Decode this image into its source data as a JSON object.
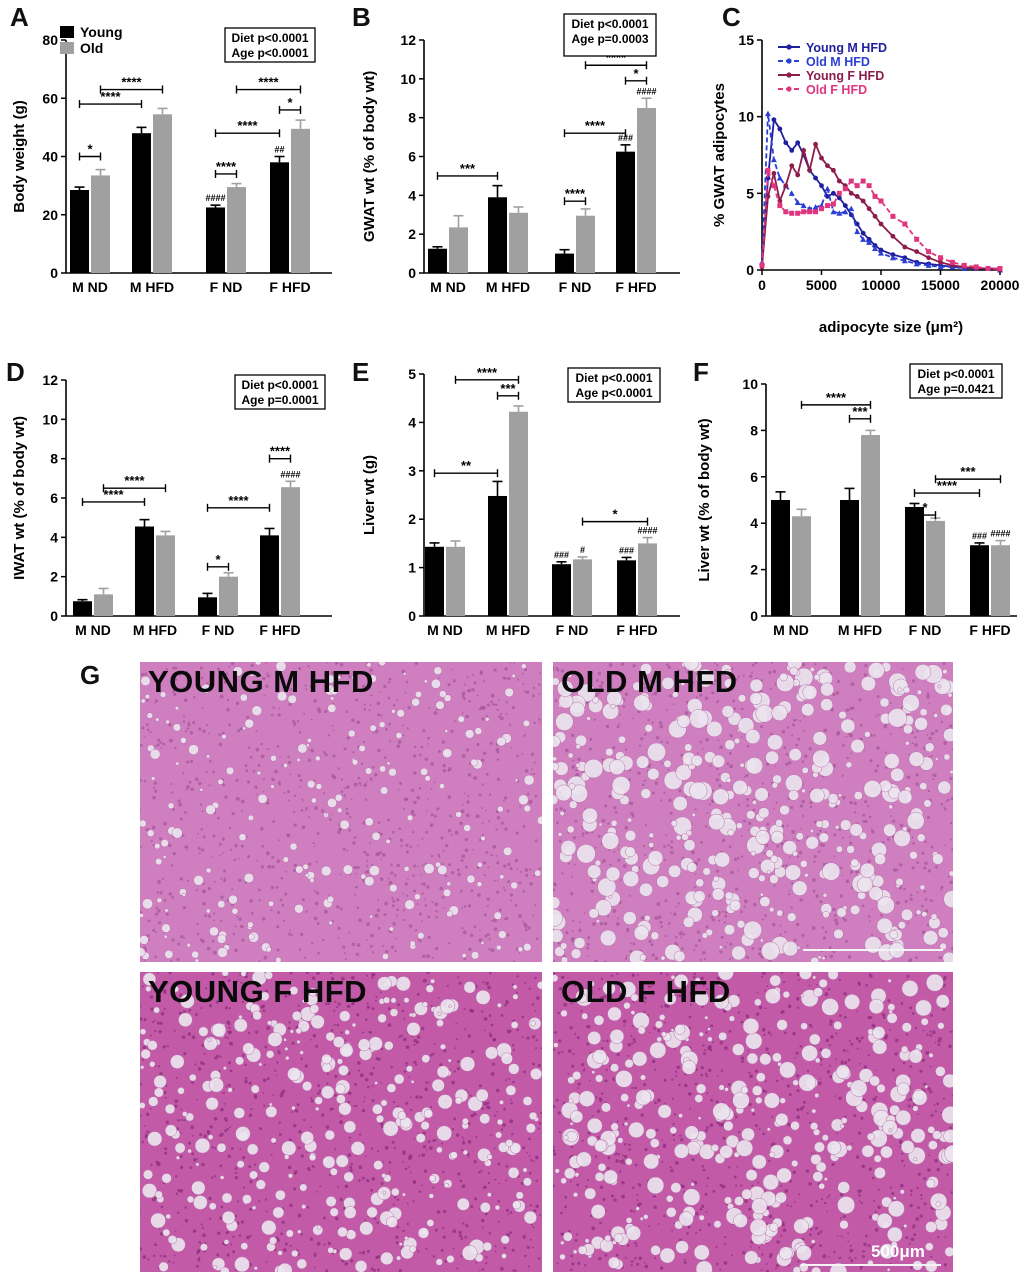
{
  "figure": {
    "bar_colors": {
      "young": "#000000",
      "old": "#a0a0a0"
    },
    "line_colors": [
      "#1f1f9e",
      "#2a3fd6",
      "#8c1c4a",
      "#e0357f"
    ]
  },
  "chart_data": [
    {
      "id": "A",
      "type": "bar",
      "panel_label": "A",
      "ylabel": "Body weight (g)",
      "xlabel": "",
      "ylim": [
        0,
        80
      ],
      "yticks": [
        "0",
        "20",
        "40",
        "60",
        "80"
      ],
      "categories": [
        "M ND",
        "M HFD",
        "F ND",
        "F HFD"
      ],
      "legend": [
        "Young",
        "Old"
      ],
      "stats": [
        "Diet p<0.0001",
        "Age p<0.0001"
      ],
      "series": [
        {
          "name": "Young",
          "values": [
            28.5,
            48,
            22.5,
            38
          ],
          "errors": [
            1,
            2,
            0.8,
            2
          ]
        },
        {
          "name": "Old",
          "values": [
            33.5,
            54.5,
            29.5,
            49.5
          ],
          "errors": [
            2,
            2,
            1.2,
            3
          ]
        }
      ],
      "over_bar": [
        {
          "series": 0,
          "cat": 2,
          "text": "####"
        },
        {
          "series": 0,
          "cat": 3,
          "text": "##"
        }
      ],
      "brackets": [
        {
          "from": [
            0,
            0
          ],
          "to": [
            0,
            1
          ],
          "y": 40,
          "text": "*"
        },
        {
          "from": [
            0,
            0
          ],
          "to": [
            1,
            0
          ],
          "y": 58,
          "text": "****"
        },
        {
          "from": [
            0,
            1
          ],
          "to": [
            1,
            1
          ],
          "y": 63,
          "text": "****"
        },
        {
          "from": [
            2,
            0
          ],
          "to": [
            2,
            1
          ],
          "y": 34,
          "text": "****"
        },
        {
          "from": [
            2,
            0
          ],
          "to": [
            3,
            0
          ],
          "y": 48,
          "text": "****"
        },
        {
          "from": [
            2,
            1
          ],
          "to": [
            3,
            1
          ],
          "y": 63,
          "text": "****"
        },
        {
          "from": [
            3,
            0
          ],
          "to": [
            3,
            1
          ],
          "y": 56,
          "text": "*"
        }
      ]
    },
    {
      "id": "B",
      "type": "bar",
      "panel_label": "B",
      "ylabel": "GWAT wt (% of body wt)",
      "xlabel": "",
      "ylim": [
        0,
        12
      ],
      "yticks": [
        "0",
        "2",
        "4",
        "6",
        "8",
        "10",
        "12"
      ],
      "categories": [
        "M ND",
        "M HFD",
        "F ND",
        "F HFD"
      ],
      "legend": [],
      "stats": [
        "Diet p<0.0001",
        "Age p=0.0003"
      ],
      "series": [
        {
          "name": "Young",
          "values": [
            1.25,
            3.9,
            1.0,
            6.25
          ],
          "errors": [
            0.1,
            0.6,
            0.2,
            0.35
          ]
        },
        {
          "name": "Old",
          "values": [
            2.35,
            3.1,
            2.95,
            8.5
          ],
          "errors": [
            0.6,
            0.3,
            0.35,
            0.5
          ]
        }
      ],
      "over_bar": [
        {
          "series": 0,
          "cat": 3,
          "text": "###"
        },
        {
          "series": 1,
          "cat": 3,
          "text": "####"
        }
      ],
      "brackets": [
        {
          "from": [
            0,
            0
          ],
          "to": [
            1,
            0
          ],
          "y": 5.0,
          "text": "***"
        },
        {
          "from": [
            2,
            0
          ],
          "to": [
            2,
            1
          ],
          "y": 3.7,
          "text": "****"
        },
        {
          "from": [
            2,
            0
          ],
          "to": [
            3,
            0
          ],
          "y": 7.2,
          "text": "****"
        },
        {
          "from": [
            3,
            0
          ],
          "to": [
            3,
            1
          ],
          "y": 9.9,
          "text": "*"
        },
        {
          "from": [
            2,
            1
          ],
          "to": [
            3,
            1
          ],
          "y": 10.7,
          "text": "****"
        }
      ]
    },
    {
      "id": "C",
      "type": "line",
      "panel_label": "C",
      "ylabel": "% GWAT adipocytes",
      "xlabel": "adipocyte size (μm²)",
      "xlim": [
        0,
        20000
      ],
      "ylim": [
        0,
        15
      ],
      "xticks": [
        "0",
        "5000",
        "10000",
        "15000",
        "20000"
      ],
      "yticks": [
        "0",
        "5",
        "10",
        "15"
      ],
      "legend_position": "top-left",
      "series": [
        {
          "name": "Young M HFD",
          "style": "solid",
          "marker": "circle",
          "x": [
            0,
            500,
            1000,
            1500,
            2000,
            2500,
            3000,
            3500,
            4000,
            4500,
            5000,
            5500,
            6000,
            6500,
            7000,
            7500,
            8000,
            8500,
            9000,
            9500,
            10000,
            11000,
            12000,
            13000,
            14000,
            15000,
            16000,
            17000,
            18000,
            19000,
            20000
          ],
          "y": [
            0.3,
            6,
            9.8,
            9.2,
            8.3,
            7.8,
            8.3,
            7.5,
            6.5,
            6,
            5.5,
            4.8,
            5,
            4.7,
            4.2,
            3.6,
            3,
            2.4,
            2,
            1.6,
            1.3,
            1,
            0.8,
            0.5,
            0.4,
            0.3,
            0.2,
            0.15,
            0.1,
            0.1,
            0.1
          ]
        },
        {
          "name": "Old M HFD",
          "style": "dashed",
          "marker": "triangle",
          "x": [
            0,
            500,
            1000,
            1500,
            2000,
            2500,
            3000,
            3500,
            4000,
            4500,
            5000,
            5500,
            6000,
            6500,
            7000,
            7500,
            8000,
            8500,
            9000,
            9500,
            10000,
            11000,
            12000,
            13000,
            14000,
            15000,
            16000,
            17000,
            18000,
            19000,
            20000
          ],
          "y": [
            0.5,
            10.2,
            7.2,
            6,
            5.5,
            5,
            4.4,
            4.2,
            4,
            4.1,
            4.2,
            5.3,
            3.8,
            3.7,
            3.8,
            4,
            2.5,
            2,
            1.8,
            1.4,
            1.1,
            0.8,
            0.6,
            0.4,
            0.3,
            0.2,
            0.2,
            0.1,
            0.1,
            0.1,
            0
          ]
        },
        {
          "name": "Young F HFD",
          "style": "solid",
          "marker": "circle",
          "x": [
            0,
            500,
            1000,
            1500,
            2000,
            2500,
            3000,
            3500,
            4000,
            4500,
            5000,
            5500,
            6000,
            6500,
            7000,
            7500,
            8000,
            8500,
            9000,
            9500,
            10000,
            11000,
            12000,
            13000,
            14000,
            15000,
            16000,
            17000,
            18000,
            19000,
            20000
          ],
          "y": [
            0.2,
            4.8,
            6.3,
            4.5,
            5.5,
            6.8,
            6.2,
            7.8,
            6.5,
            8.2,
            7.3,
            6.8,
            6.5,
            5.8,
            5.5,
            5,
            4.8,
            4.5,
            4,
            3.5,
            3,
            2.2,
            1.5,
            1.2,
            0.8,
            0.5,
            0.3,
            0.2,
            0.1,
            0.1,
            0
          ]
        },
        {
          "name": "Old F HFD",
          "style": "dashed",
          "marker": "square",
          "x": [
            0,
            500,
            1000,
            1500,
            2000,
            2500,
            3000,
            3500,
            4000,
            4500,
            5000,
            5500,
            6000,
            6500,
            7000,
            7500,
            8000,
            8500,
            9000,
            9500,
            10000,
            11000,
            12000,
            13000,
            14000,
            15000,
            16000,
            17000,
            18000,
            19000,
            20000
          ],
          "y": [
            0.3,
            6.5,
            5.5,
            4.2,
            3.8,
            3.7,
            3.7,
            3.8,
            3.8,
            3.8,
            4,
            4.2,
            4.3,
            5,
            5.3,
            5.8,
            5.5,
            5.8,
            5.5,
            4.8,
            4.5,
            3.5,
            3,
            2,
            1.2,
            0.8,
            0.5,
            0.3,
            0.2,
            0.1,
            0.1
          ]
        }
      ]
    },
    {
      "id": "D",
      "type": "bar",
      "panel_label": "D",
      "ylabel": "IWAT wt (% of body wt)",
      "xlabel": "",
      "ylim": [
        0,
        12
      ],
      "yticks": [
        "0",
        "2",
        "4",
        "6",
        "8",
        "10",
        "12"
      ],
      "categories": [
        "M ND",
        "M HFD",
        "F ND",
        "F HFD"
      ],
      "legend": [],
      "stats": [
        "Diet p<0.0001",
        "Age p=0.0001"
      ],
      "series": [
        {
          "name": "Young",
          "values": [
            0.75,
            4.55,
            0.95,
            4.1
          ],
          "errors": [
            0.08,
            0.35,
            0.2,
            0.35
          ]
        },
        {
          "name": "Old",
          "values": [
            1.1,
            4.1,
            2.0,
            6.55
          ],
          "errors": [
            0.3,
            0.2,
            0.2,
            0.3
          ]
        }
      ],
      "over_bar": [
        {
          "series": 1,
          "cat": 3,
          "text": "####"
        }
      ],
      "brackets": [
        {
          "from": [
            0,
            0
          ],
          "to": [
            1,
            0
          ],
          "y": 5.8,
          "text": "****"
        },
        {
          "from": [
            0,
            1
          ],
          "to": [
            1,
            1
          ],
          "y": 6.5,
          "text": "****"
        },
        {
          "from": [
            2,
            0
          ],
          "to": [
            2,
            1
          ],
          "y": 2.5,
          "text": "*"
        },
        {
          "from": [
            2,
            0
          ],
          "to": [
            3,
            0
          ],
          "y": 5.5,
          "text": "****"
        },
        {
          "from": [
            3,
            0
          ],
          "to": [
            3,
            1
          ],
          "y": 8.0,
          "text": "****"
        }
      ]
    },
    {
      "id": "E",
      "type": "bar",
      "panel_label": "E",
      "ylabel": "Liver wt (g)",
      "xlabel": "",
      "ylim": [
        0,
        5
      ],
      "yticks": [
        "0",
        "1",
        "2",
        "3",
        "4",
        "5"
      ],
      "categories": [
        "M ND",
        "M HFD",
        "F ND",
        "F HFD"
      ],
      "legend": [],
      "stats": [
        "Diet p<0.0001",
        "Age p<0.0001"
      ],
      "series": [
        {
          "name": "Young",
          "values": [
            1.43,
            2.48,
            1.07,
            1.15
          ],
          "errors": [
            0.08,
            0.3,
            0.05,
            0.06
          ]
        },
        {
          "name": "Old",
          "values": [
            1.43,
            4.22,
            1.17,
            1.5
          ],
          "errors": [
            0.12,
            0.12,
            0.05,
            0.12
          ]
        }
      ],
      "over_bar": [
        {
          "series": 0,
          "cat": 2,
          "text": "###"
        },
        {
          "series": 1,
          "cat": 2,
          "text": "#"
        },
        {
          "series": 0,
          "cat": 3,
          "text": "###"
        },
        {
          "series": 1,
          "cat": 3,
          "text": "####"
        }
      ],
      "brackets": [
        {
          "from": [
            0,
            0
          ],
          "to": [
            1,
            0
          ],
          "y": 2.95,
          "text": "**"
        },
        {
          "from": [
            1,
            0
          ],
          "to": [
            1,
            1
          ],
          "y": 4.55,
          "text": "***"
        },
        {
          "from": [
            0,
            1
          ],
          "to": [
            1,
            1
          ],
          "y": 4.88,
          "text": "****"
        },
        {
          "from": [
            2,
            1
          ],
          "to": [
            3,
            1
          ],
          "y": 1.95,
          "text": "*"
        }
      ]
    },
    {
      "id": "F",
      "type": "bar",
      "panel_label": "F",
      "ylabel": "Liver wt (% of body wt)",
      "xlabel": "",
      "ylim": [
        0,
        10
      ],
      "yticks": [
        "0",
        "2",
        "4",
        "6",
        "8",
        "10"
      ],
      "categories": [
        "M ND",
        "M HFD",
        "F ND",
        "F HFD"
      ],
      "legend": [],
      "stats": [
        "Diet p<0.0001",
        "Age p=0.0421"
      ],
      "series": [
        {
          "name": "Young",
          "values": [
            5.0,
            5.0,
            4.7,
            3.05
          ],
          "errors": [
            0.35,
            0.5,
            0.15,
            0.1
          ]
        },
        {
          "name": "Old",
          "values": [
            4.3,
            7.8,
            4.1,
            3.05
          ],
          "errors": [
            0.3,
            0.2,
            0.12,
            0.2
          ]
        }
      ],
      "over_bar": [
        {
          "series": 0,
          "cat": 3,
          "text": "###"
        },
        {
          "series": 1,
          "cat": 3,
          "text": "####"
        }
      ],
      "brackets": [
        {
          "from": [
            1,
            0
          ],
          "to": [
            1,
            1
          ],
          "y": 8.5,
          "text": "***"
        },
        {
          "from": [
            0,
            1
          ],
          "to": [
            1,
            1
          ],
          "y": 9.1,
          "text": "****"
        },
        {
          "from": [
            2,
            0
          ],
          "to": [
            2,
            1
          ],
          "y": 4.35,
          "text": "*"
        },
        {
          "from": [
            2,
            0
          ],
          "to": [
            3,
            0
          ],
          "y": 5.3,
          "text": "****"
        },
        {
          "from": [
            2,
            1
          ],
          "to": [
            3,
            1
          ],
          "y": 5.9,
          "text": "***"
        }
      ]
    }
  ],
  "histology": {
    "panel_label": "G",
    "images": [
      {
        "label": "YOUNG M HFD",
        "tone": "pink",
        "fat": 0.25
      },
      {
        "label": "OLD M HFD",
        "tone": "pink",
        "fat": 0.85
      },
      {
        "label": "YOUNG F HFD",
        "tone": "magenta",
        "fat": 0.6
      },
      {
        "label": "OLD F HFD",
        "tone": "magenta",
        "fat": 0.75
      }
    ],
    "scale_text": "500μm"
  }
}
